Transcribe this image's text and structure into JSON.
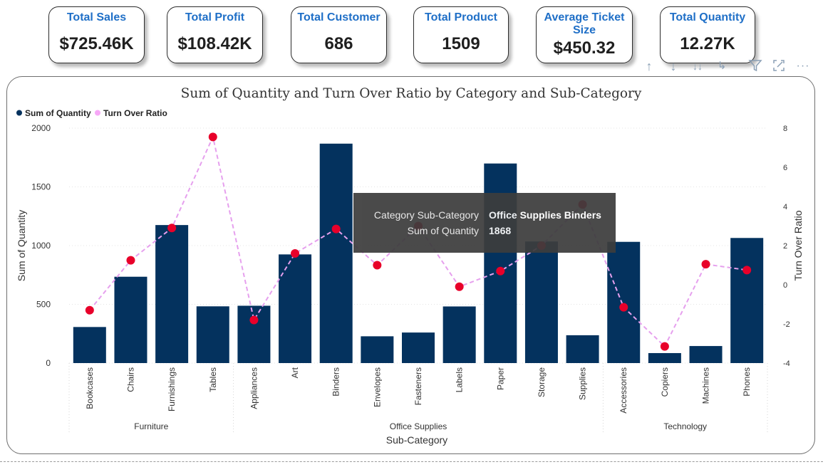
{
  "kpis": [
    {
      "label": "Total Sales",
      "value": "$725.46K"
    },
    {
      "label": "Total Profit",
      "value": "$108.42K"
    },
    {
      "label": "Total Customer",
      "value": "686"
    },
    {
      "label": "Total Product",
      "value": "1509"
    },
    {
      "label": "Average Ticket Size",
      "value": "$450.32"
    },
    {
      "label": "Total Quantity",
      "value": "12.27K"
    }
  ],
  "toolbar": {
    "icons": [
      "arrow-up-icon",
      "arrow-down-icon",
      "double-arrow-down-icon",
      "expand-hierarchy-icon",
      "filter-icon",
      "focus-mode-icon",
      "more-options-icon"
    ]
  },
  "chart_data": {
    "type": "bar",
    "title": "Sum of Quantity and Turn Over Ratio by Category and Sub-Category",
    "legend_position": "top-left",
    "xlabel": "Sub-Category",
    "ylabel": "Sum of Quantity",
    "y2label": "Turn Over Ratio",
    "ylim": [
      0,
      2000
    ],
    "y_ticks": [
      0,
      500,
      1000,
      1500,
      2000
    ],
    "y2lim": [
      -4,
      8
    ],
    "y2_ticks": [
      -4,
      -2,
      0,
      2,
      4,
      6,
      8
    ],
    "categories": [
      "Bookcases",
      "Chairs",
      "Furnishings",
      "Tables",
      "Appliances",
      "Art",
      "Binders",
      "Envelopes",
      "Fasteners",
      "Labels",
      "Paper",
      "Storage",
      "Supplies",
      "Accessories",
      "Copiers",
      "Machines",
      "Phones"
    ],
    "groups": [
      {
        "name": "Furniture",
        "count": 4
      },
      {
        "name": "Office Supplies",
        "count": 9
      },
      {
        "name": "Technology",
        "count": 4
      }
    ],
    "series": [
      {
        "name": "Sum of Quantity",
        "type": "bar",
        "color": "#04325e",
        "values": [
          307,
          735,
          1175,
          483,
          488,
          925,
          1868,
          228,
          260,
          482,
          1699,
          1035,
          237,
          1032,
          85,
          145,
          1065
        ]
      },
      {
        "name": "Turn Over Ratio",
        "type": "line",
        "axis": "secondary",
        "color": "#e6a0ee",
        "marker_color": "#e8002a",
        "values": [
          -1.3,
          1.25,
          2.9,
          7.55,
          -1.8,
          1.6,
          2.85,
          1.0,
          3.0,
          -0.1,
          0.7,
          2.0,
          4.1,
          -1.15,
          -3.15,
          1.05,
          0.75
        ]
      }
    ]
  },
  "tooltip": {
    "category_key": "Category Sub-Category",
    "category_value": "Office Supplies Binders",
    "quantity_key": "Sum of Quantity",
    "quantity_value": "1868"
  }
}
